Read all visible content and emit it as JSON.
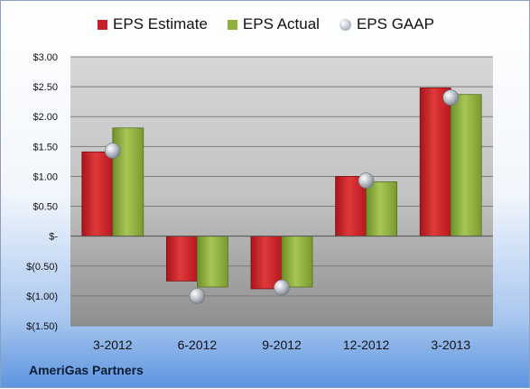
{
  "chart_data": {
    "type": "bar",
    "categories": [
      "3-2012",
      "6-2012",
      "9-2012",
      "12-2012",
      "3-2013"
    ],
    "series": [
      {
        "name": "EPS Estimate",
        "values": [
          1.41,
          -0.75,
          -0.88,
          1.0,
          2.48
        ],
        "color": "#c8202a"
      },
      {
        "name": "EPS Actual",
        "values": [
          1.81,
          -0.85,
          -0.85,
          0.91,
          2.37
        ],
        "color": "#8fb23e"
      },
      {
        "name": "EPS GAAP",
        "values": [
          1.43,
          -1.0,
          -0.86,
          0.93,
          2.32
        ],
        "color": "#b8bec6",
        "marker": "sphere"
      }
    ],
    "ylim": [
      -1.5,
      3.0
    ],
    "yticks": [
      3.0,
      2.5,
      2.0,
      1.5,
      1.0,
      0.5,
      0,
      -0.5,
      -1.0,
      -1.5
    ],
    "ytick_labels": [
      "$3.00",
      "$2.50",
      "$2.00",
      "$1.50",
      "$1.00",
      "$0.50",
      "$-",
      "$(0.50)",
      "$(1.00)",
      "$(1.50)"
    ],
    "grid": true,
    "legend_position": "top"
  },
  "company_name": "AmeriGas Partners"
}
